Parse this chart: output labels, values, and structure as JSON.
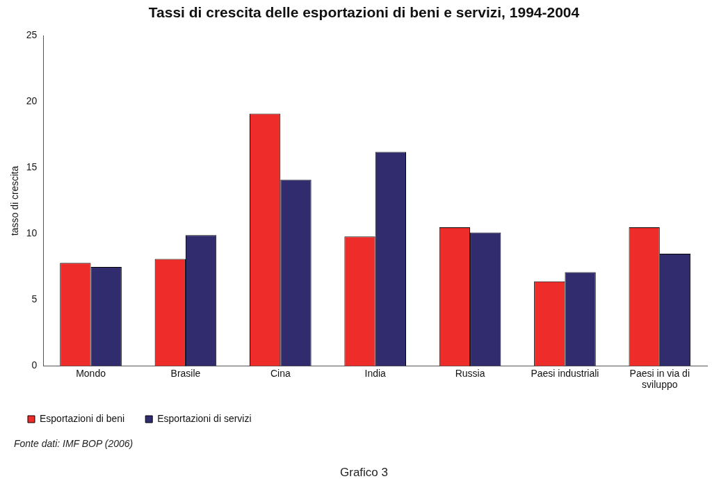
{
  "chart_data": {
    "type": "bar",
    "title": "Tassi di crescita delle esportazioni di beni e servizi, 1994-2004",
    "ylabel": "tasso di crescita",
    "categories": [
      "Mondo",
      "Brasile",
      "Cina",
      "India",
      "Russia",
      "Paesi industriali",
      "Paesi in via di sviluppo"
    ],
    "series": [
      {
        "name": "Esportazioni di beni",
        "color": "#ee2d2a",
        "values": [
          7.8,
          8.1,
          19.1,
          9.8,
          10.5,
          6.4,
          10.5
        ]
      },
      {
        "name": "Esportazioni di servizi",
        "color": "#312c6e",
        "values": [
          7.5,
          9.9,
          14.1,
          16.2,
          10.1,
          7.1,
          8.5
        ]
      }
    ],
    "ylim": [
      0,
      25
    ],
    "yticks": [
      0,
      5,
      10,
      15,
      20,
      25
    ],
    "grid": false,
    "legend": "bottom",
    "annotations": [
      "Fonte dati: IMF BOP (2006)",
      "Grafico 3"
    ]
  }
}
